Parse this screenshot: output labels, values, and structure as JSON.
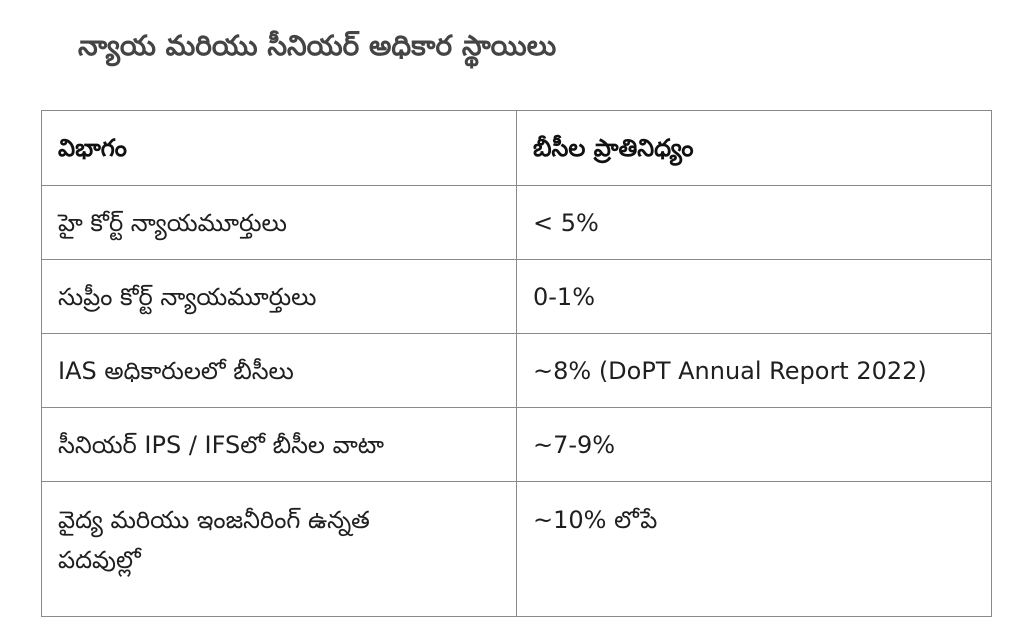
{
  "title": "న్యాయ మరియు సీనియర్ అధికార స్థాయిలు",
  "table": {
    "headers": [
      "విభాగం",
      "బీసీల ప్రాతినిధ్యం"
    ],
    "rows": [
      [
        "హై కోర్ట్ న్యాయమూర్తులు",
        "< 5%"
      ],
      [
        "సుప్రీం కోర్ట్ న్యాయమూర్తులు",
        "0-1%"
      ],
      [
        "IAS అధికారులలో బీసీలు",
        "~8% (DoPT Annual Report 2022)"
      ],
      [
        "సీనియర్ IPS / IFSలో బీసీల వాటా",
        "~7-9%"
      ],
      [
        "వైద్య మరియు ఇంజనీరింగ్ ఉన్నత పదవుల్లో",
        "~10% లోపే"
      ]
    ]
  }
}
